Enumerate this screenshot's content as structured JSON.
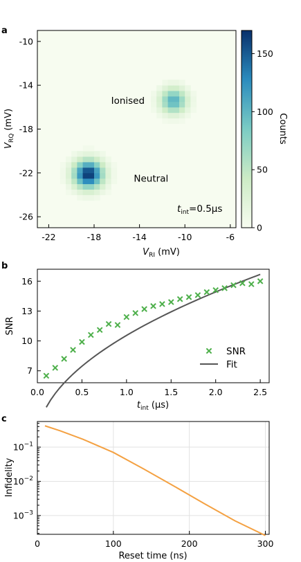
{
  "panels": {
    "a": "a",
    "b": "b",
    "c": "c"
  },
  "chart_data": [
    {
      "type": "heatmap",
      "panel": "a",
      "xlabel_main": "V",
      "xlabel_sub": "RI",
      "xlabel_unit": " (mV)",
      "ylabel_main": "V",
      "ylabel_sub": "RQ",
      "ylabel_unit": " (mV)",
      "xlim": [
        -23,
        -5.5
      ],
      "ylim": [
        -27,
        -9
      ],
      "xticks": [
        -22,
        -18,
        -14,
        -10,
        -6
      ],
      "yticks": [
        -10,
        -14,
        -18,
        -22,
        -26
      ],
      "blobs": [
        {
          "x": -18.5,
          "y": -22.1,
          "peak": 170,
          "sigma": 0.9
        },
        {
          "x": -11.0,
          "y": -15.4,
          "peak": 105,
          "sigma": 0.8
        }
      ],
      "colorbar": {
        "label": "Counts",
        "range": [
          0,
          170
        ],
        "ticks": [
          0,
          50,
          100,
          150
        ],
        "colors": [
          "#f7fcf0",
          "#ccebc5",
          "#7bccc4",
          "#2b8cbe",
          "#08306b"
        ]
      },
      "annotations": [
        {
          "text": "Ionised",
          "x": -16.5,
          "y": -15.7
        },
        {
          "text": "Neutral",
          "x": -14.5,
          "y": -22.8
        }
      ],
      "tint_main": "t",
      "tint_sub": "int",
      "tint_value": "=0.5μs"
    },
    {
      "type": "scatter",
      "panel": "b",
      "xlabel_main": "t",
      "xlabel_sub": "int",
      "xlabel_unit": " (μs)",
      "ylabel": "SNR",
      "xlim": [
        0,
        2.6
      ],
      "ylim": [
        5.8,
        17.2
      ],
      "xticks": [
        0.0,
        0.5,
        1.0,
        1.5,
        2.0,
        2.5
      ],
      "xtick_labels": [
        "0.0",
        "0.5",
        "1.0",
        "1.5",
        "2.0",
        "2.5"
      ],
      "yticks": [
        7,
        10,
        13,
        16
      ],
      "legend_position": "lower-right",
      "series": [
        {
          "name": "SNR",
          "color": "#4daf4a",
          "marker": "x",
          "x": [
            0.1,
            0.2,
            0.3,
            0.4,
            0.5,
            0.6,
            0.7,
            0.8,
            0.9,
            1.0,
            1.1,
            1.2,
            1.3,
            1.4,
            1.5,
            1.6,
            1.7,
            1.8,
            1.9,
            2.0,
            2.1,
            2.2,
            2.3,
            2.4,
            2.5
          ],
          "y": [
            6.5,
            7.3,
            8.2,
            9.1,
            9.9,
            10.6,
            11.1,
            11.7,
            11.6,
            12.4,
            12.8,
            13.2,
            13.5,
            13.7,
            13.9,
            14.2,
            14.4,
            14.6,
            14.9,
            15.1,
            15.3,
            15.6,
            15.8,
            15.7,
            16.0
          ]
        },
        {
          "name": "Fit",
          "color": "#555555",
          "kind": "line",
          "model": "a*sqrt(x)",
          "a": 10.55
        }
      ]
    },
    {
      "type": "line",
      "panel": "c",
      "xlabel": "Reset time (ns)",
      "ylabel": "Infidelity",
      "xlim": [
        0,
        305
      ],
      "ylog": true,
      "ylim_exp": [
        -3.55,
        -0.25
      ],
      "xticks": [
        0,
        100,
        200,
        300
      ],
      "ytick_exponents": [
        -1,
        -2,
        -3
      ],
      "ytick_base": "10",
      "grid": true,
      "series": [
        {
          "color": "#f4a142",
          "x": [
            10,
            30,
            60,
            100,
            140,
            180,
            220,
            260,
            300
          ],
          "y": [
            0.42,
            0.3,
            0.17,
            0.07,
            0.023,
            0.0072,
            0.0022,
            0.0007,
            0.00026
          ]
        }
      ]
    }
  ]
}
